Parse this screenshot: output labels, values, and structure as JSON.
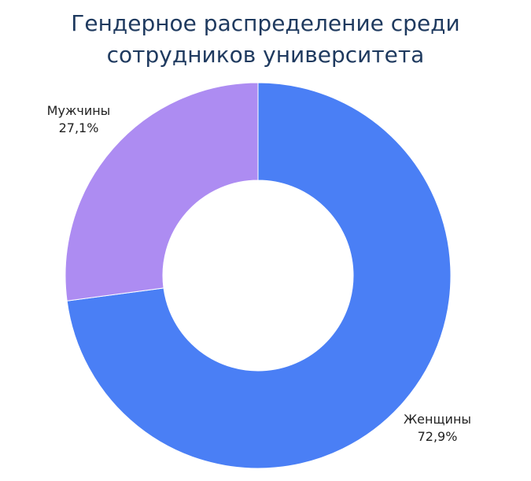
{
  "chart_data": {
    "type": "pie",
    "variant": "donut",
    "title_lines": [
      "Гендерное распределение среди",
      "сотрудников университета"
    ],
    "slices": [
      {
        "label": "Женщины",
        "value": 72.9,
        "value_label": "72,9%",
        "color": "#4a7ff5"
      },
      {
        "label": "Мужчины",
        "value": 27.1,
        "value_label": "27,1%",
        "color": "#ad8cf2"
      }
    ],
    "start": "12 o'clock",
    "direction": "clockwise",
    "legend": "none",
    "data_labels": "outside"
  }
}
